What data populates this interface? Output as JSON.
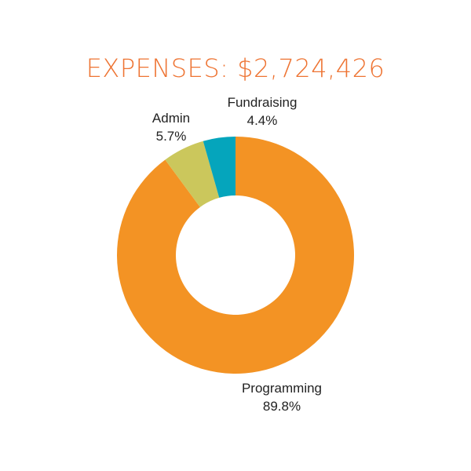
{
  "title": "EXPENSES: $2,724,426",
  "colors": {
    "title": "#ee7433",
    "programming": "#f39324",
    "admin": "#cbc75c",
    "fundraising": "#05a5bc"
  },
  "chart_data": {
    "type": "pie",
    "style": "donut",
    "title": "EXPENSES: $2,724,426",
    "slices": [
      {
        "label": "Programming",
        "value": 89.8,
        "value_label": "89.8%",
        "color_key": "programming"
      },
      {
        "label": "Admin",
        "value": 5.7,
        "value_label": "5.7%",
        "color_key": "admin"
      },
      {
        "label": "Fundraising",
        "value": 4.4,
        "value_label": "4.4%",
        "color_key": "fundraising"
      }
    ]
  }
}
